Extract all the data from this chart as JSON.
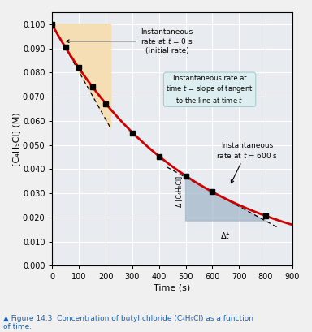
{
  "xlabel": "Time (s)",
  "ylabel": "[C₄H₉Cl] (M)",
  "xlim": [
    0,
    900
  ],
  "ylim": [
    0,
    0.105
  ],
  "xticks": [
    0,
    100,
    200,
    300,
    400,
    500,
    600,
    700,
    800,
    900
  ],
  "yticks": [
    0,
    0.01,
    0.02,
    0.03,
    0.04,
    0.05,
    0.06,
    0.07,
    0.08,
    0.09,
    0.1
  ],
  "data_points_x": [
    0,
    50,
    100,
    150,
    200,
    300,
    400,
    500,
    600,
    800
  ],
  "data_points_y": [
    0.1,
    0.0905,
    0.082,
    0.0741,
    0.0671,
    0.0549,
    0.0452,
    0.0371,
    0.0306,
    0.0208
  ],
  "curve_color": "#cc0000",
  "orange_color": "#f5deb3",
  "blue_color": "#a0b4c8",
  "annotation_box_facecolor": "#ddeef0",
  "annotation_box_edgecolor": "#aacccc",
  "grid_color": "#ffffff",
  "ax_bg_color": "#e8ecf0",
  "fig_bg_color": "#f0f0f0",
  "caption_color": "#1a5fb4",
  "figure_caption": "▲ Figure 14.3  Concentration of butyl chloride (C₄H₉Cl) as a function\nof time.",
  "text_t0_label": "Instantaneous\nrate at $t$ = 0 s\n(initial rate)",
  "text_t600_label": "Instantaneous\nrate at $t$ = 600 s",
  "text_box_label": "Instantaneous rate at\ntime $t$ = slope of tangent\nto the line at time $t$",
  "text_delta_c": "Δ [C₄H₉Cl]",
  "text_delta_t": "Δ$t$"
}
